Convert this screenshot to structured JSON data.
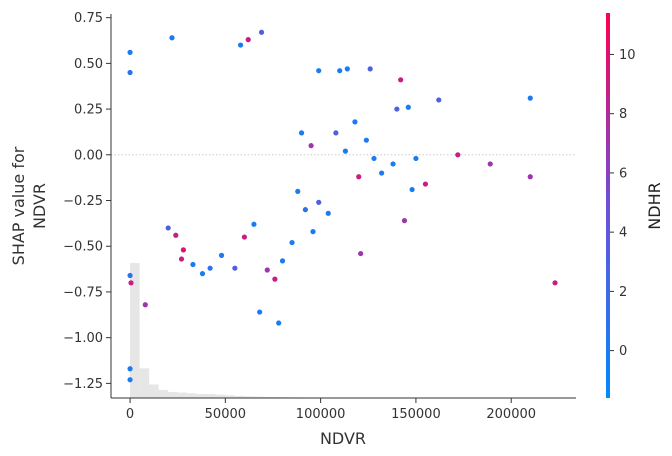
{
  "chart_data": {
    "type": "scatter",
    "title": "",
    "xlabel": "NDVR",
    "ylabel_lines": [
      "SHAP value for",
      "NDVR"
    ],
    "color_feature": "NDHR",
    "xlim": [
      -10000,
      234000
    ],
    "ylim": [
      -1.33,
      0.77
    ],
    "x_ticks": [
      0,
      50000,
      100000,
      150000,
      200000
    ],
    "x_tick_labels": [
      "0",
      "50000",
      "100000",
      "150000",
      "200000"
    ],
    "y_ticks": [
      0.75,
      0.5,
      0.25,
      0.0,
      -0.25,
      -0.5,
      -0.75,
      -1.0,
      -1.25
    ],
    "y_tick_labels": [
      "0.75",
      "0.50",
      "0.25",
      "0.00",
      "−0.25",
      "−0.50",
      "−0.75",
      "−1.00",
      "−1.25"
    ],
    "colorbar": {
      "min": -1.6,
      "max": 11.4,
      "ticks": [
        0,
        2,
        4,
        6,
        8,
        10
      ],
      "tick_labels": [
        "0",
        "2",
        "4",
        "6",
        "8",
        "10"
      ],
      "colors": [
        "#008afb",
        "#6e4fd8",
        "#ff0052"
      ]
    },
    "zero_line": true,
    "histogram": {
      "bin_width": 5000,
      "bin_starts": [
        0,
        5000,
        10000,
        15000,
        20000,
        25000,
        30000,
        35000,
        40000,
        45000,
        50000,
        55000,
        60000,
        65000,
        70000,
        75000,
        80000,
        85000,
        90000,
        95000,
        100000,
        105000,
        110000
      ],
      "relative_heights": [
        1.0,
        0.22,
        0.1,
        0.06,
        0.045,
        0.04,
        0.035,
        0.03,
        0.03,
        0.025,
        0.02,
        0.015,
        0.012,
        0.01,
        0.008,
        0.007,
        0.006,
        0.005,
        0.004,
        0.003,
        0.003,
        0.002,
        0.002
      ]
    },
    "points": [
      {
        "x": 0,
        "y": 0.56,
        "c": 0
      },
      {
        "x": 0,
        "y": 0.45,
        "c": 1
      },
      {
        "x": 0,
        "y": -1.23,
        "c": 0
      },
      {
        "x": 0,
        "y": -1.17,
        "c": 0
      },
      {
        "x": 0,
        "y": -0.66,
        "c": 1
      },
      {
        "x": 500,
        "y": -0.7,
        "c": 9
      },
      {
        "x": 8000,
        "y": -0.82,
        "c": 7
      },
      {
        "x": 22000,
        "y": 0.64,
        "c": 0
      },
      {
        "x": 58000,
        "y": 0.6,
        "c": 0
      },
      {
        "x": 62000,
        "y": 0.63,
        "c": 9
      },
      {
        "x": 69000,
        "y": 0.67,
        "c": 3
      },
      {
        "x": 68000,
        "y": -0.86,
        "c": 0
      },
      {
        "x": 78000,
        "y": -0.92,
        "c": 0
      },
      {
        "x": 76000,
        "y": -0.68,
        "c": 9
      },
      {
        "x": 72000,
        "y": -0.63,
        "c": 7
      },
      {
        "x": 38000,
        "y": -0.65,
        "c": 0
      },
      {
        "x": 42000,
        "y": -0.62,
        "c": 1
      },
      {
        "x": 27000,
        "y": -0.57,
        "c": 9
      },
      {
        "x": 28000,
        "y": -0.52,
        "c": 10
      },
      {
        "x": 48000,
        "y": -0.55,
        "c": 0
      },
      {
        "x": 99000,
        "y": 0.46,
        "c": 0
      },
      {
        "x": 110000,
        "y": 0.46,
        "c": 0
      },
      {
        "x": 114000,
        "y": 0.47,
        "c": 0
      },
      {
        "x": 126000,
        "y": 0.47,
        "c": 3
      },
      {
        "x": 142000,
        "y": 0.41,
        "c": 9
      },
      {
        "x": 162000,
        "y": 0.3,
        "c": 3
      },
      {
        "x": 210000,
        "y": 0.31,
        "c": 0
      },
      {
        "x": 172000,
        "y": 0.0,
        "c": 9
      },
      {
        "x": 189000,
        "y": -0.05,
        "c": 7
      },
      {
        "x": 210000,
        "y": -0.12,
        "c": 7
      },
      {
        "x": 223000,
        "y": -0.7,
        "c": 9
      },
      {
        "x": 155000,
        "y": -0.16,
        "c": 9
      },
      {
        "x": 148000,
        "y": -0.19,
        "c": 0
      },
      {
        "x": 144000,
        "y": -0.36,
        "c": 7
      },
      {
        "x": 121000,
        "y": -0.54,
        "c": 7
      },
      {
        "x": 120000,
        "y": -0.12,
        "c": 9
      },
      {
        "x": 132000,
        "y": -0.1,
        "c": 0
      },
      {
        "x": 138000,
        "y": -0.05,
        "c": 0
      },
      {
        "x": 140000,
        "y": 0.25,
        "c": 3
      },
      {
        "x": 146000,
        "y": 0.26,
        "c": 0
      },
      {
        "x": 150000,
        "y": -0.02,
        "c": 0
      },
      {
        "x": 104000,
        "y": -0.32,
        "c": 0
      },
      {
        "x": 99000,
        "y": -0.26,
        "c": 3
      },
      {
        "x": 96000,
        "y": -0.42,
        "c": 0
      },
      {
        "x": 92000,
        "y": -0.3,
        "c": 1
      },
      {
        "x": 85000,
        "y": -0.48,
        "c": 0
      },
      {
        "x": 88000,
        "y": -0.2,
        "c": 0
      },
      {
        "x": 90000,
        "y": 0.12,
        "c": 0
      },
      {
        "x": 95000,
        "y": 0.05,
        "c": 7
      },
      {
        "x": 108000,
        "y": 0.12,
        "c": 3
      },
      {
        "x": 113000,
        "y": 0.02,
        "c": 0
      },
      {
        "x": 118000,
        "y": 0.18,
        "c": 0
      },
      {
        "x": 124000,
        "y": 0.08,
        "c": 0
      },
      {
        "x": 128000,
        "y": -0.02,
        "c": 0
      },
      {
        "x": 80000,
        "y": -0.58,
        "c": 0
      },
      {
        "x": 65000,
        "y": -0.38,
        "c": 0
      },
      {
        "x": 60000,
        "y": -0.45,
        "c": 9
      },
      {
        "x": 55000,
        "y": -0.62,
        "c": 3
      },
      {
        "x": 33000,
        "y": -0.6,
        "c": 0
      },
      {
        "x": 24000,
        "y": -0.44,
        "c": 9
      },
      {
        "x": 20000,
        "y": -0.4,
        "c": 3
      }
    ]
  }
}
